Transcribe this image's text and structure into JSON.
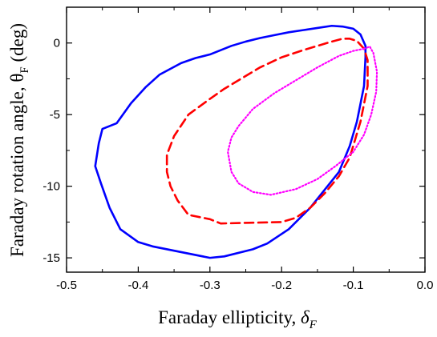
{
  "chart_data": {
    "type": "line",
    "title": "",
    "xlabel": {
      "text": "Faraday ellipticity, ",
      "symbol": "δ",
      "subscript": "F"
    },
    "ylabel": {
      "text": "Faraday rotation angle, ",
      "symbol": "θ",
      "subscript": "F",
      "suffix": " (deg)"
    },
    "xlim": [
      -0.5,
      0.0
    ],
    "ylim": [
      -16,
      2.5
    ],
    "x_ticks": [
      -0.5,
      -0.4,
      -0.3,
      -0.2,
      -0.1,
      0.0
    ],
    "x_tick_labels": [
      "-0.5",
      "-0.4",
      "-0.3",
      "-0.2",
      "-0.1",
      "0.0"
    ],
    "y_ticks": [
      -15,
      -10,
      -5,
      0
    ],
    "y_tick_labels": [
      "-15",
      "-10",
      "-5",
      "0"
    ],
    "grid": false,
    "legend": "none",
    "series": [
      {
        "color": "#0000ff",
        "style": "solid",
        "points": [
          [
            -0.083,
            -0.2
          ],
          [
            -0.09,
            0.6
          ],
          [
            -0.1,
            1.0
          ],
          [
            -0.115,
            1.15
          ],
          [
            -0.13,
            1.2
          ],
          [
            -0.15,
            1.05
          ],
          [
            -0.17,
            0.9
          ],
          [
            -0.19,
            0.75
          ],
          [
            -0.21,
            0.55
          ],
          [
            -0.23,
            0.35
          ],
          [
            -0.25,
            0.1
          ],
          [
            -0.27,
            -0.2
          ],
          [
            -0.3,
            -0.8
          ],
          [
            -0.32,
            -1.05
          ],
          [
            -0.34,
            -1.4
          ],
          [
            -0.37,
            -2.2
          ],
          [
            -0.39,
            -3.1
          ],
          [
            -0.41,
            -4.2
          ],
          [
            -0.43,
            -5.6
          ],
          [
            -0.45,
            -6.0
          ],
          [
            -0.455,
            -7.0
          ],
          [
            -0.46,
            -8.6
          ],
          [
            -0.452,
            -9.8
          ],
          [
            -0.44,
            -11.5
          ],
          [
            -0.425,
            -13.0
          ],
          [
            -0.4,
            -13.9
          ],
          [
            -0.38,
            -14.2
          ],
          [
            -0.3,
            -15.0
          ],
          [
            -0.28,
            -14.9
          ],
          [
            -0.24,
            -14.4
          ],
          [
            -0.22,
            -14.0
          ],
          [
            -0.19,
            -13.0
          ],
          [
            -0.16,
            -11.5
          ],
          [
            -0.12,
            -9.0
          ],
          [
            -0.105,
            -7.2
          ],
          [
            -0.095,
            -5.5
          ],
          [
            -0.085,
            -3.0
          ],
          [
            -0.083,
            -1.0
          ],
          [
            -0.083,
            -0.2
          ]
        ]
      },
      {
        "color": "#ff0000",
        "style": "dashed",
        "points": [
          [
            -0.085,
            -0.4
          ],
          [
            -0.095,
            0.15
          ],
          [
            -0.105,
            0.3
          ],
          [
            -0.115,
            0.3
          ],
          [
            -0.13,
            0.1
          ],
          [
            -0.15,
            -0.2
          ],
          [
            -0.17,
            -0.5
          ],
          [
            -0.2,
            -1.0
          ],
          [
            -0.23,
            -1.7
          ],
          [
            -0.26,
            -2.6
          ],
          [
            -0.28,
            -3.2
          ],
          [
            -0.3,
            -3.9
          ],
          [
            -0.33,
            -5.0
          ],
          [
            -0.35,
            -6.5
          ],
          [
            -0.36,
            -7.8
          ],
          [
            -0.36,
            -9.0
          ],
          [
            -0.355,
            -10.0
          ],
          [
            -0.345,
            -11.0
          ],
          [
            -0.33,
            -12.0
          ],
          [
            -0.3,
            -12.3
          ],
          [
            -0.285,
            -12.6
          ],
          [
            -0.2,
            -12.5
          ],
          [
            -0.18,
            -12.2
          ],
          [
            -0.16,
            -11.5
          ],
          [
            -0.14,
            -10.5
          ],
          [
            -0.12,
            -9.3
          ],
          [
            -0.105,
            -8.0
          ],
          [
            -0.09,
            -5.5
          ],
          [
            -0.08,
            -3.0
          ],
          [
            -0.08,
            -1.2
          ],
          [
            -0.085,
            -0.4
          ]
        ]
      },
      {
        "color": "#ff00ff",
        "style": "dotted",
        "points": [
          [
            -0.085,
            -0.4
          ],
          [
            -0.1,
            -0.55
          ],
          [
            -0.12,
            -0.9
          ],
          [
            -0.15,
            -1.7
          ],
          [
            -0.18,
            -2.6
          ],
          [
            -0.21,
            -3.5
          ],
          [
            -0.24,
            -4.6
          ],
          [
            -0.26,
            -5.8
          ],
          [
            -0.27,
            -6.6
          ],
          [
            -0.275,
            -7.6
          ],
          [
            -0.27,
            -9.0
          ],
          [
            -0.26,
            -9.8
          ],
          [
            -0.24,
            -10.4
          ],
          [
            -0.215,
            -10.6
          ],
          [
            -0.18,
            -10.2
          ],
          [
            -0.15,
            -9.5
          ],
          [
            -0.125,
            -8.6
          ],
          [
            -0.1,
            -7.6
          ],
          [
            -0.085,
            -6.4
          ],
          [
            -0.075,
            -5.0
          ],
          [
            -0.068,
            -3.4
          ],
          [
            -0.067,
            -2.0
          ],
          [
            -0.072,
            -0.7
          ],
          [
            -0.077,
            -0.25
          ],
          [
            -0.085,
            -0.4
          ]
        ]
      }
    ]
  }
}
